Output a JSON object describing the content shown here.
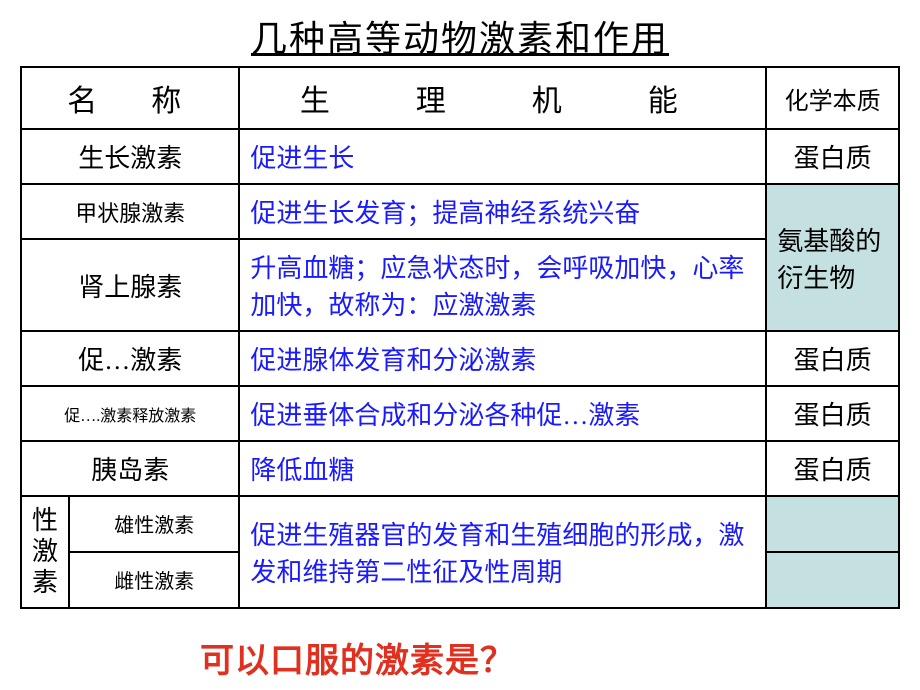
{
  "title": "几种高等动物激素和作用",
  "header": {
    "name": "名　称",
    "func": "生　理　机　能",
    "chem": "化学本质"
  },
  "rows": {
    "r1": {
      "name": "生长激素",
      "func": "促进生长",
      "chem": "蛋白质"
    },
    "r2": {
      "name": "甲状腺激素",
      "func": "促进生长发育；提高神经系统兴奋"
    },
    "r3": {
      "name": "肾上腺素",
      "func": "升高血糖；应急状态时，会呼吸加快，心率加快，故称为：应激激素"
    },
    "chem23": "氨基酸的衍生物",
    "r4": {
      "name": "促…激素",
      "func": "促进腺体发育和分泌激素",
      "chem": "蛋白质"
    },
    "r5": {
      "name": "促….激素释放激素",
      "func": "促进垂体合成和分泌各种促…激素",
      "chem": "蛋白质"
    },
    "r6": {
      "name": "胰岛素",
      "func": "降低血糖",
      "chem": "蛋白质"
    },
    "sex_label": "性激素",
    "r7a": {
      "name": "雄性激素"
    },
    "r7b": {
      "name": "雌性激素"
    },
    "sex_func": "促进生殖器官的发育和生殖细胞的形成，激发和维持第二性征及性周期"
  },
  "question": "可以口服的激素是？"
}
